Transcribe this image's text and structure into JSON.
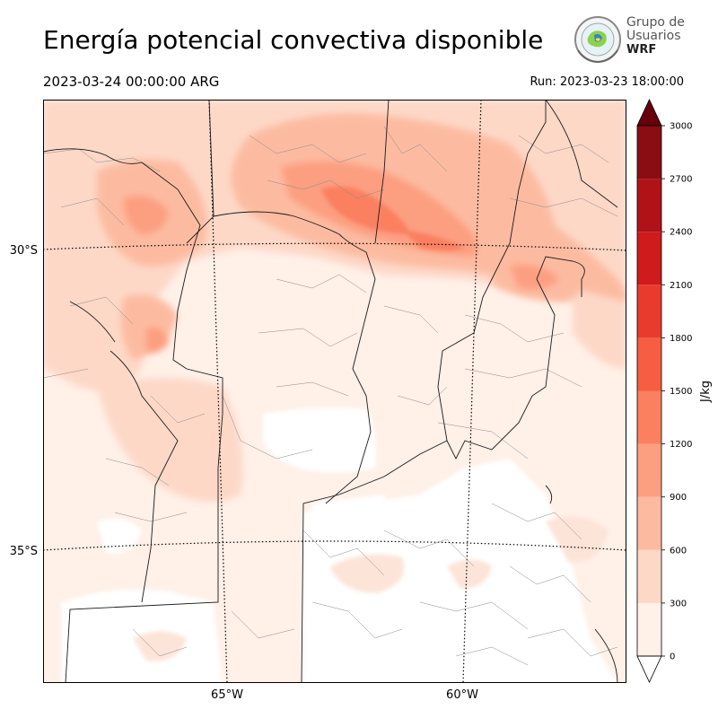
{
  "header": {
    "title": "Energía potencial convectiva disponible",
    "valid_time": "2023-03-24 00:00:00 ARG",
    "run_time": "Run: 2023-03-23 18:00:00"
  },
  "logo": {
    "line1": "Grupo de",
    "line2": "Usuarios",
    "line3": "WRF"
  },
  "map": {
    "lat_labels": [
      "30°S",
      "35°S"
    ],
    "lon_labels": [
      "65°W",
      "60°W"
    ]
  },
  "colorbar": {
    "label": "J/kg",
    "ticks": [
      "0",
      "300",
      "600",
      "900",
      "1200",
      "1500",
      "1800",
      "2100",
      "2400",
      "2700",
      "3000"
    ],
    "levels": [
      0,
      300,
      600,
      900,
      1200,
      1500,
      1800,
      2100,
      2400,
      2700,
      3000
    ],
    "colors": [
      "#fff0e8",
      "#fdd8c7",
      "#fcbba1",
      "#fc9e80",
      "#fb8060",
      "#f65d41",
      "#ea3a2e",
      "#cf1b1c",
      "#b11218",
      "#8b0d14"
    ],
    "over_color": "#67000d",
    "under_color": "#ffffff"
  }
}
